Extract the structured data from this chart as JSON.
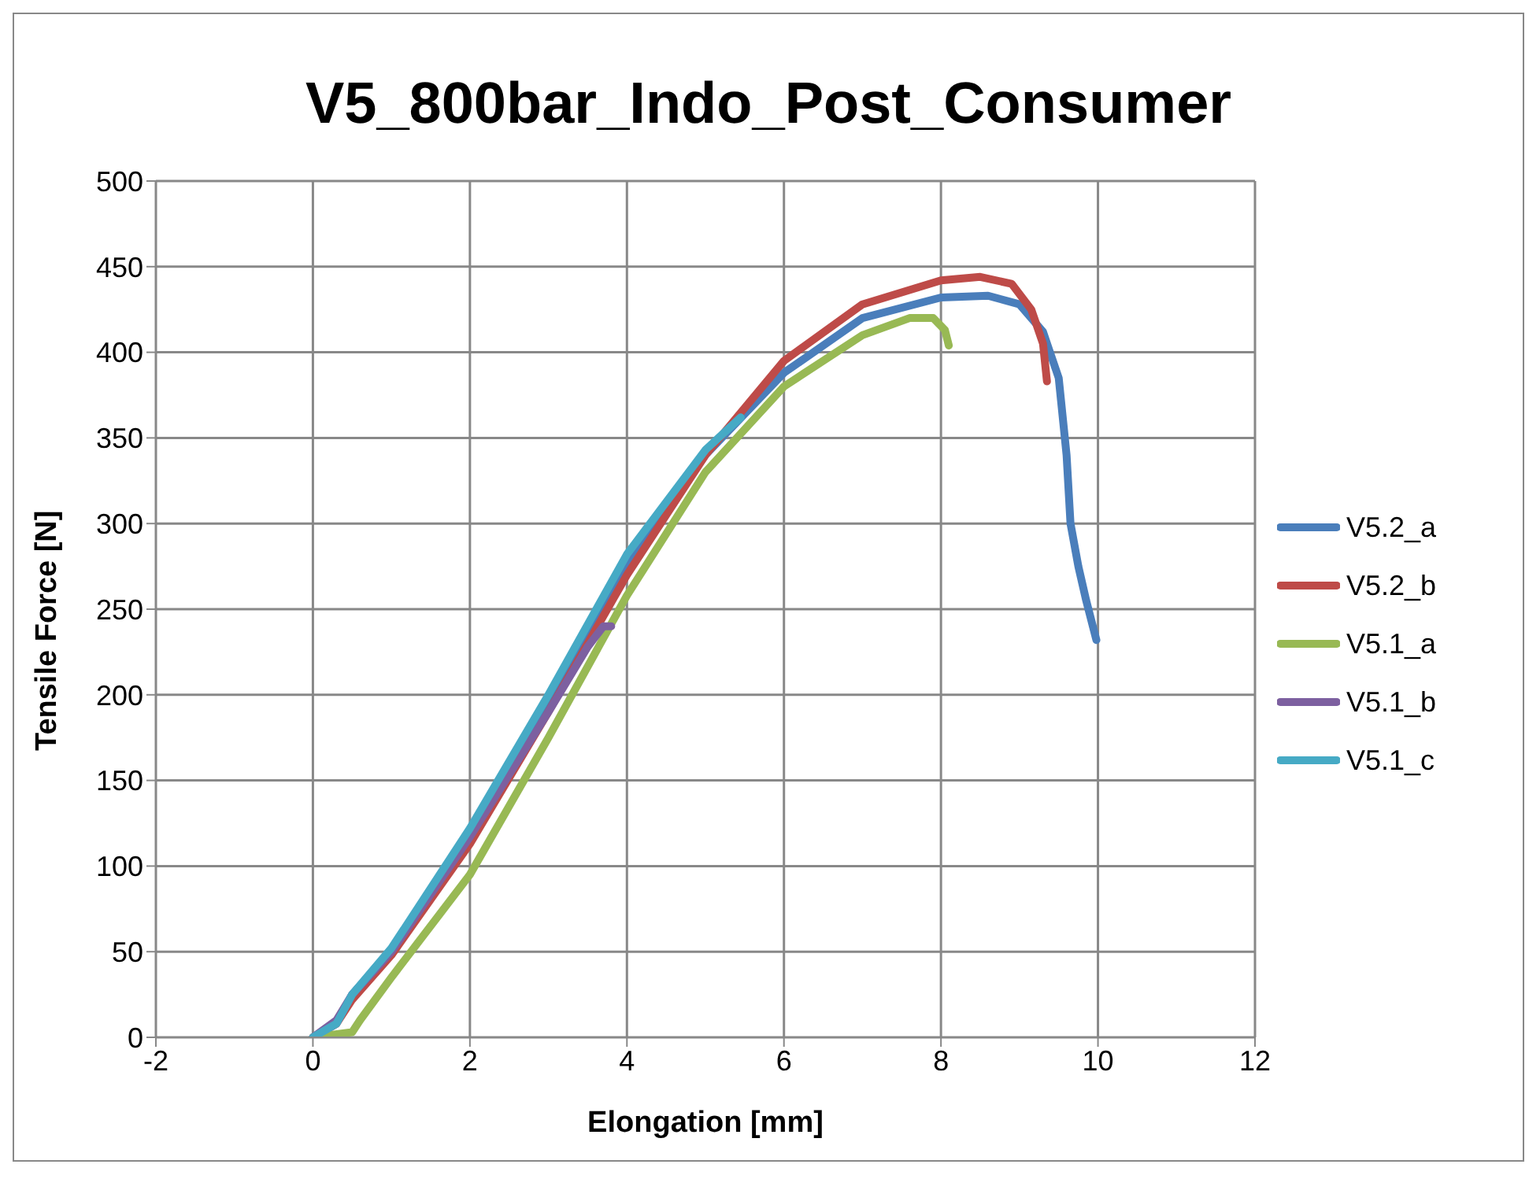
{
  "chart_data": {
    "type": "line",
    "title": "V5_800bar_Indo_Post_Consumer",
    "xlabel": "Elongation [mm]",
    "ylabel": "Tensile Force [N]",
    "xlim": [
      -2,
      12
    ],
    "xticks": [
      -2,
      0,
      2,
      4,
      6,
      8,
      10,
      12
    ],
    "ylim": [
      0,
      500
    ],
    "yticks": [
      0,
      50,
      100,
      150,
      200,
      250,
      300,
      350,
      400,
      450,
      500
    ],
    "grid": true,
    "legend": "right",
    "marker": "none",
    "line_style": "solid",
    "series": [
      {
        "name": "V5.2_a",
        "color": "#4a7ebb",
        "x": [
          0,
          0.3,
          0.5,
          1,
          2,
          3,
          4,
          5,
          6,
          7,
          8,
          8.6,
          9,
          9.3,
          9.5,
          9.6,
          9.65,
          9.75,
          9.85,
          9.98
        ],
        "values": [
          0,
          8,
          25,
          50,
          118,
          195,
          275,
          340,
          388,
          420,
          432,
          433,
          428,
          412,
          385,
          340,
          300,
          275,
          255,
          232
        ]
      },
      {
        "name": "V5.2_b",
        "color": "#be4b48",
        "x": [
          0,
          0.3,
          0.5,
          1,
          2,
          3,
          4,
          5,
          6,
          7,
          8,
          8.5,
          8.9,
          9.15,
          9.3,
          9.35
        ],
        "values": [
          0,
          8,
          22,
          48,
          113,
          190,
          270,
          340,
          395,
          428,
          442,
          444,
          440,
          425,
          405,
          383
        ]
      },
      {
        "name": "V5.1_a",
        "color": "#98b954",
        "x": [
          0,
          0.5,
          0.6,
          1,
          2,
          3,
          4,
          5,
          6,
          7,
          7.6,
          7.9,
          8.05,
          8.1
        ],
        "values": [
          0,
          3,
          10,
          35,
          95,
          175,
          258,
          330,
          380,
          410,
          420,
          420,
          413,
          404
        ]
      },
      {
        "name": "V5.1_b",
        "color": "#7d60a0",
        "x": [
          0,
          0.3,
          0.5,
          1,
          2,
          3,
          3.5,
          3.7,
          3.8
        ],
        "values": [
          0,
          10,
          25,
          50,
          117,
          190,
          228,
          240,
          240
        ]
      },
      {
        "name": "V5.1_c",
        "color": "#46aac5",
        "x": [
          0,
          0.3,
          0.5,
          1,
          2,
          3,
          4,
          5,
          5.45
        ],
        "values": [
          0,
          8,
          25,
          52,
          122,
          200,
          282,
          343,
          362
        ]
      }
    ]
  }
}
